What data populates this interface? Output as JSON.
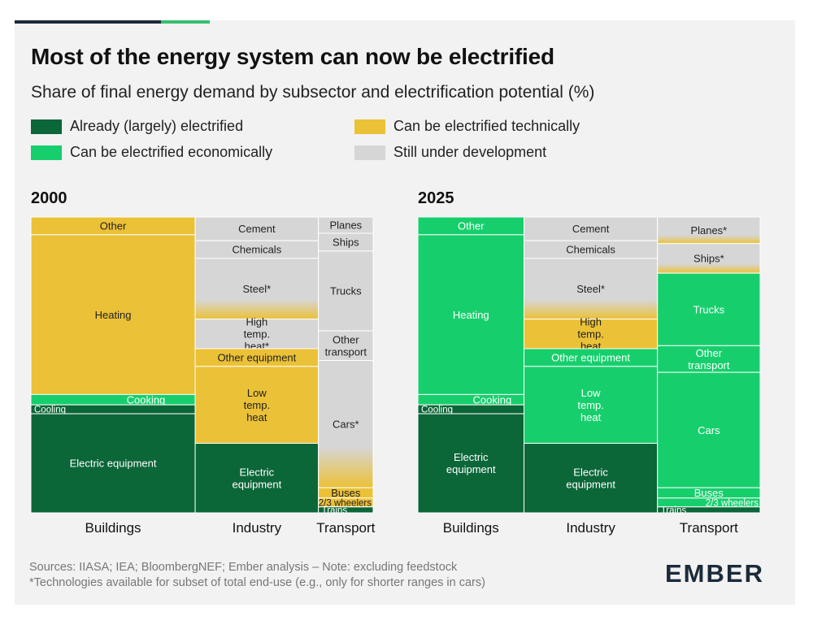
{
  "header": {
    "title": "Most of the energy system can now be electrified",
    "subtitle": "Share of final energy demand by subsector and electrification potential (%)"
  },
  "legend": [
    {
      "key": "electrified",
      "label": "Already (largely) electrified",
      "color": "#0b6638"
    },
    {
      "key": "technically",
      "label": "Can be electrified technically",
      "color": "#ebc137"
    },
    {
      "key": "economically",
      "label": "Can be electrified economically",
      "color": "#16cf6c"
    },
    {
      "key": "development",
      "label": "Still under development",
      "color": "#d6d6d6"
    }
  ],
  "footer": {
    "sources": "Sources: IIASA; IEA; BloombergNEF; Ember analysis – Note: excluding feedstock",
    "note": "*Technologies available for subset of total end-use (e.g., only for shorter ranges in cars)",
    "logo": "EMBER"
  },
  "chart_data": [
    {
      "type": "marimekko",
      "title": "2000",
      "columns": [
        {
          "name": "Buildings",
          "width_share": 48,
          "segments": [
            {
              "label": "Other",
              "share": 6,
              "status": "technically"
            },
            {
              "label": "Heating",
              "share": 54,
              "status": "technically"
            },
            {
              "label": "Cooking",
              "share": 3.5,
              "status": "economically"
            },
            {
              "label": "Cooling",
              "share": 3,
              "status": "electrified"
            },
            {
              "label": "Electric equipment",
              "share": 33.5,
              "status": "electrified"
            }
          ]
        },
        {
          "name": "Industry",
          "width_share": 36,
          "segments": [
            {
              "label": "Cement",
              "share": 8,
              "status": "development"
            },
            {
              "label": "Chemicals",
              "share": 6,
              "status": "development"
            },
            {
              "label": "Steel*",
              "share": 20.5,
              "status": "development",
              "fade_to": "technically"
            },
            {
              "label": "High temp. heat*",
              "share": 10,
              "status": "development"
            },
            {
              "label": "Other equipment",
              "share": 6,
              "status": "technically"
            },
            {
              "label": "Low temp. heat",
              "share": 26,
              "status": "technically"
            },
            {
              "label": "Electric equipment",
              "share": 23.5,
              "status": "electrified"
            }
          ]
        },
        {
          "name": "Transport",
          "width_share": 16,
          "segments": [
            {
              "label": "Planes",
              "share": 5.5,
              "status": "development"
            },
            {
              "label": "Ships",
              "share": 6,
              "status": "development"
            },
            {
              "label": "Trucks",
              "share": 27,
              "status": "development"
            },
            {
              "label": "Other transport",
              "share": 10,
              "status": "development"
            },
            {
              "label": "Cars*",
              "share": 43,
              "status": "development",
              "fade_to": "technically"
            },
            {
              "label": "Buses",
              "share": 3.5,
              "status": "technically"
            },
            {
              "label": "2/3 wheelers",
              "share": 3,
              "status": "technically"
            },
            {
              "label": "Trains",
              "share": 2,
              "status": "electrified"
            }
          ]
        }
      ]
    },
    {
      "type": "marimekko",
      "title": "2025",
      "columns": [
        {
          "name": "Buildings",
          "width_share": 31,
          "segments": [
            {
              "label": "Other",
              "share": 6,
              "status": "economically"
            },
            {
              "label": "Heating",
              "share": 54,
              "status": "economically"
            },
            {
              "label": "Cooking",
              "share": 3.5,
              "status": "economically"
            },
            {
              "label": "Cooling",
              "share": 3,
              "status": "electrified"
            },
            {
              "label": "Electric equipment",
              "share": 33.5,
              "status": "electrified"
            }
          ]
        },
        {
          "name": "Industry",
          "width_share": 39,
          "segments": [
            {
              "label": "Cement",
              "share": 8,
              "status": "development"
            },
            {
              "label": "Chemicals",
              "share": 6,
              "status": "development"
            },
            {
              "label": "Steel*",
              "share": 20.5,
              "status": "development",
              "fade_to": "technically"
            },
            {
              "label": "High temp. heat",
              "share": 10,
              "status": "technically"
            },
            {
              "label": "Other equipment",
              "share": 6,
              "status": "economically"
            },
            {
              "label": "Low temp. heat",
              "share": 26,
              "status": "economically"
            },
            {
              "label": "Electric equipment",
              "share": 23.5,
              "status": "electrified"
            }
          ]
        },
        {
          "name": "Transport",
          "width_share": 30,
          "segments": [
            {
              "label": "Planes*",
              "share": 9,
              "status": "development",
              "fade_to": "technically"
            },
            {
              "label": "Ships*",
              "share": 10,
              "status": "development",
              "fade_to": "technically"
            },
            {
              "label": "Trucks",
              "share": 24.5,
              "status": "economically"
            },
            {
              "label": "Other transport",
              "share": 9,
              "status": "economically"
            },
            {
              "label": "Cars",
              "share": 39,
              "status": "economically"
            },
            {
              "label": "Buses",
              "share": 3.5,
              "status": "economically"
            },
            {
              "label": "2/3 wheelers",
              "share": 3,
              "status": "economically"
            },
            {
              "label": "Trains",
              "share": 2,
              "status": "electrified"
            }
          ]
        }
      ]
    }
  ]
}
